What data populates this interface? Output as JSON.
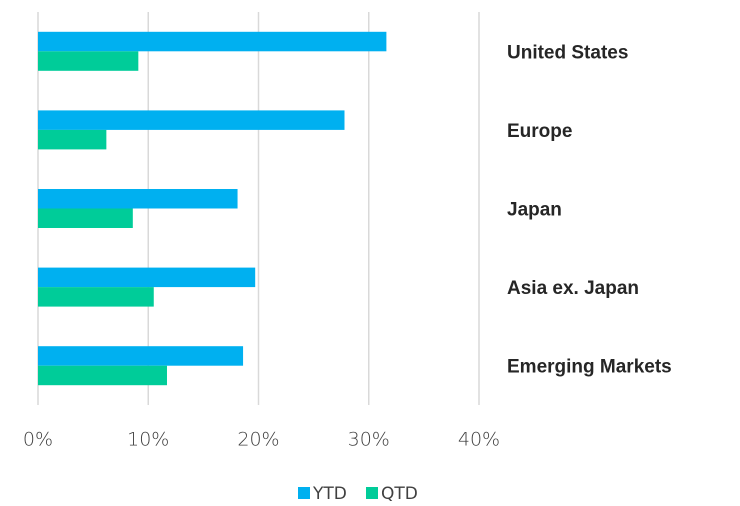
{
  "chart_data": {
    "type": "bar",
    "orientation": "horizontal",
    "categories": [
      "United States",
      "Europe",
      "Japan",
      "Asia ex. Japan",
      "Emerging Markets"
    ],
    "series": [
      {
        "name": "YTD",
        "color": "#00b0f0",
        "values": [
          31.6,
          27.8,
          18.1,
          19.7,
          18.6
        ]
      },
      {
        "name": "QTD",
        "color": "#00cc99",
        "values": [
          9.1,
          6.2,
          8.6,
          10.5,
          11.7
        ]
      }
    ],
    "xlim": [
      0,
      40
    ],
    "xticks": [
      {
        "value": 0,
        "label": "0%"
      },
      {
        "value": 10,
        "label": "10%"
      },
      {
        "value": 20,
        "label": "20%"
      },
      {
        "value": 30,
        "label": "30%"
      },
      {
        "value": 40,
        "label": "40%"
      }
    ],
    "grid": true,
    "legend": "bottom"
  }
}
